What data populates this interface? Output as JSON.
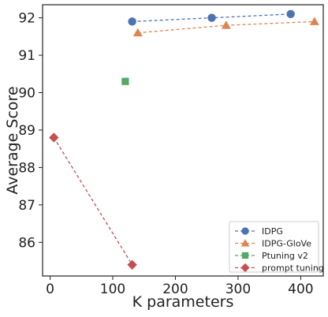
{
  "chart_data": {
    "type": "scatter",
    "title": "",
    "xlabel": "K parameters",
    "ylabel": "Average Score",
    "xlim": [
      -12,
      436
    ],
    "ylim": [
      85.1,
      92.35
    ],
    "xticks": [
      0,
      100,
      200,
      300,
      400
    ],
    "yticks": [
      86,
      87,
      88,
      89,
      90,
      91,
      92
    ],
    "grid": false,
    "legend_position": "bottom-right",
    "series": [
      {
        "name": "IDPG",
        "color": "#4c72b0",
        "marker": "circle",
        "linestyle": "dashed",
        "points": [
          {
            "x": 131,
            "y": 91.9
          },
          {
            "x": 258,
            "y": 92.0
          },
          {
            "x": 384,
            "y": 92.1
          }
        ]
      },
      {
        "name": "IDPG-GloVe",
        "color": "#dd8452",
        "marker": "triangle",
        "linestyle": "dashed",
        "points": [
          {
            "x": 140,
            "y": 91.6
          },
          {
            "x": 281,
            "y": 91.8
          },
          {
            "x": 422,
            "y": 91.9
          }
        ]
      },
      {
        "name": "Ptuning v2",
        "color": "#55a868",
        "marker": "square",
        "linestyle": "dashed",
        "points": [
          {
            "x": 120,
            "y": 90.3
          }
        ]
      },
      {
        "name": "prompt tuning",
        "color": "#c44e52",
        "marker": "diamond",
        "linestyle": "dashed",
        "points": [
          {
            "x": 6,
            "y": 88.8
          },
          {
            "x": 131,
            "y": 85.4
          }
        ]
      }
    ]
  }
}
